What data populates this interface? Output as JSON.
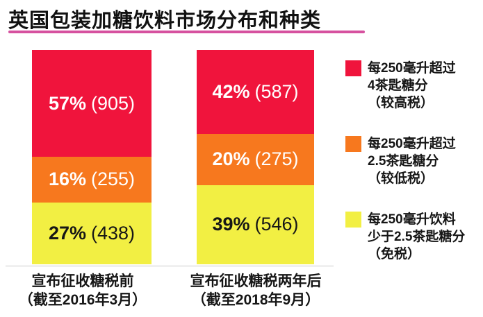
{
  "title": "英国包装加糖饮料市场分布和种类",
  "colors": {
    "red": "#F0143C",
    "orange": "#F7781E",
    "yellow": "#F2EF43",
    "title_underline": "#D6519F",
    "axis_line": "#C9C9C9",
    "dark_text": "#161616",
    "light_text": "#FFFFFF"
  },
  "chart_data": {
    "type": "bar",
    "subtype": "stacked-percentage-columns",
    "title": "英国包装加糖饮料市场分布和种类",
    "categories": [
      "宣布征收糖税前（截至2016年3月）",
      "宣布征收糖税两年后（截至2018年9月）"
    ],
    "series": [
      {
        "name": "每250毫升超过4茶匙糖分（较高税）",
        "color": "#F0143C",
        "values_percent": [
          57,
          42
        ],
        "counts": [
          905,
          587
        ]
      },
      {
        "name": "每250毫升超过2.5茶匙糖分（较低税）",
        "color": "#F7781E",
        "values_percent": [
          16,
          20
        ],
        "counts": [
          255,
          275
        ]
      },
      {
        "name": "每250毫升饮料少于2.5茶匙糖分（免税）",
        "color": "#F2EF43",
        "values_percent": [
          27,
          39
        ],
        "counts": [
          438,
          546
        ]
      }
    ],
    "legend_position": "right",
    "value_labels": "percent_and_count",
    "grid": false
  },
  "bars": [
    {
      "label_line1": "宣布征收糖税前",
      "label_line2": "（截至2016年3月）",
      "segments": [
        {
          "pct_label": "57%",
          "count_label": "(905)",
          "value": 57,
          "color_key": "red",
          "text_color": "#FFFFFF"
        },
        {
          "pct_label": "16%",
          "count_label": "(255)",
          "value": 16,
          "color_key": "orange",
          "text_color": "#FFFFFF"
        },
        {
          "pct_label": "27%",
          "count_label": "(438)",
          "value": 27,
          "color_key": "yellow",
          "text_color": "#161616"
        }
      ]
    },
    {
      "label_line1": "宣布征收糖税两年后",
      "label_line2": "（截至2018年9月）",
      "segments": [
        {
          "pct_label": "42%",
          "count_label": "(587)",
          "value": 42,
          "color_key": "red",
          "text_color": "#FFFFFF"
        },
        {
          "pct_label": "20%",
          "count_label": "(275)",
          "value": 20,
          "color_key": "orange",
          "text_color": "#FFFFFF"
        },
        {
          "pct_label": "39%",
          "count_label": "(546)",
          "value": 39,
          "color_key": "yellow",
          "text_color": "#161616"
        }
      ]
    }
  ],
  "legend": [
    {
      "color_key": "red",
      "lines": [
        "每250毫升超过",
        "4茶匙糖分",
        "（较高税）"
      ]
    },
    {
      "color_key": "orange",
      "lines": [
        "每250毫升超过",
        "2.5茶匙糖分",
        "（较低税）"
      ]
    },
    {
      "color_key": "yellow",
      "lines": [
        "每250毫升饮料",
        "少于2.5茶匙糖分",
        "（免税）"
      ]
    }
  ]
}
